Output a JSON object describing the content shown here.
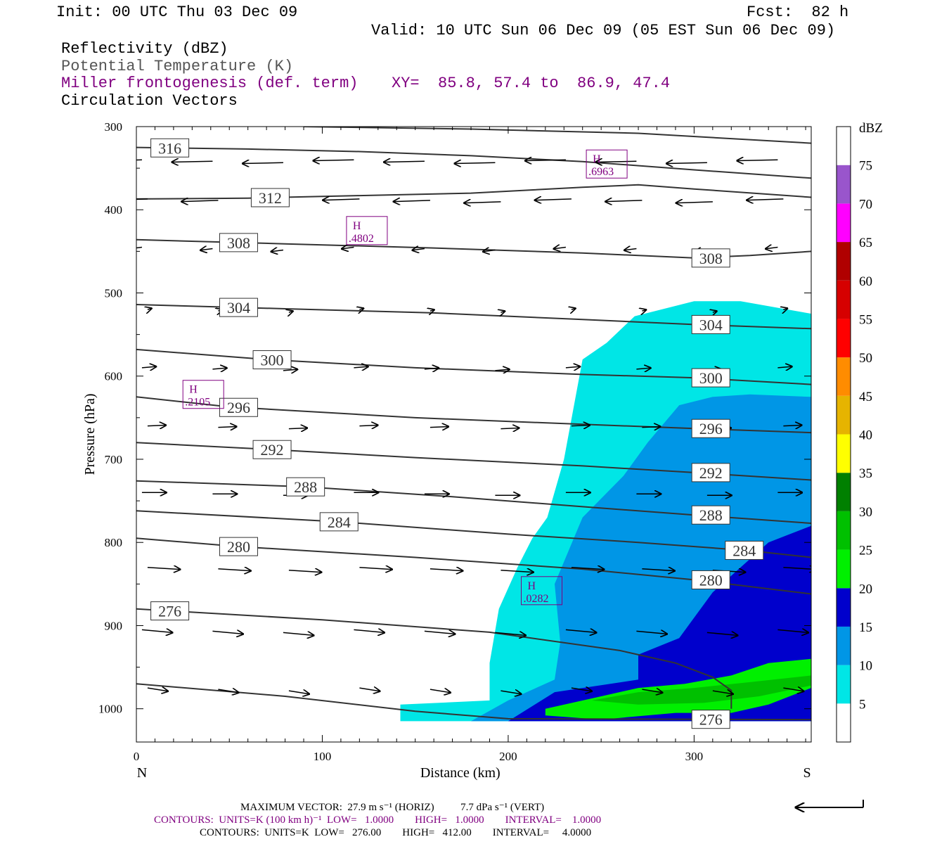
{
  "header": {
    "init": "Init: 00 UTC Thu 03 Dec 09",
    "fcst": "Fcst:  82 h",
    "valid": "Valid: 10 UTC Sun 06 Dec 09 (05 EST Sun 06 Dec 09)",
    "fields": [
      "Reflectivity (dBZ)",
      "Potential Temperature (K)",
      "Miller frontogenesis (def. term)",
      "Circulation Vectors"
    ],
    "xy": "XY=  85.8, 57.4 to  86.9, 47.4"
  },
  "footer": {
    "line1": "MAXIMUM VECTOR:  27.9 m s⁻¹ (HORIZ)          7.7 dPa s⁻¹ (VERT)",
    "line2": "CONTOURS:  UNITS=K (100 km h)⁻¹  LOW=   1.0000        HIGH=   1.0000        INTERVAL=    1.0000",
    "line3": "CONTOURS:  UNITS=K  LOW=   276.00        HIGH=   412.00        INTERVAL=     4.0000"
  },
  "chart_data": {
    "type": "cross-section",
    "xlabel": "Distance (km)",
    "ylabel": "Pressure (hPa)",
    "xlim": [
      0,
      363
    ],
    "ylim": [
      300,
      1040
    ],
    "x_ticks": [
      0,
      100,
      200,
      300
    ],
    "y_ticks": [
      300,
      400,
      500,
      600,
      700,
      800,
      900,
      1000
    ],
    "x_end_labels": {
      "left": "N",
      "right": "S"
    },
    "colorbar": {
      "title": "dBZ",
      "levels": [
        5,
        10,
        15,
        20,
        25,
        30,
        35,
        40,
        45,
        50,
        55,
        60,
        65,
        70,
        75
      ],
      "colors": [
        "#ffffff",
        "#00e6e6",
        "#0096e6",
        "#0000cc",
        "#00f000",
        "#00c000",
        "#008000",
        "#ffff00",
        "#e6b400",
        "#ff8c00",
        "#ff0000",
        "#d60000",
        "#b00000",
        "#ff00ff",
        "#9955cc",
        "#ffffff"
      ]
    },
    "reflectivity_regions": [
      {
        "dbz": 5,
        "polygon": [
          [
            142,
            995
          ],
          [
            190,
            990
          ],
          [
            190,
            945
          ],
          [
            195,
            880
          ],
          [
            205,
            830
          ],
          [
            213,
            795
          ],
          [
            221,
            770
          ],
          [
            230,
            700
          ],
          [
            235,
            640
          ],
          [
            240,
            580
          ],
          [
            253,
            560
          ],
          [
            268,
            528
          ],
          [
            300,
            510
          ],
          [
            325,
            510
          ],
          [
            363,
            525
          ],
          [
            363,
            1015
          ],
          [
            142,
            1015
          ]
        ]
      },
      {
        "dbz": 10,
        "polygon": [
          [
            180,
            1015
          ],
          [
            200,
            990
          ],
          [
            225,
            965
          ],
          [
            228,
            920
          ],
          [
            225,
            850
          ],
          [
            240,
            770
          ],
          [
            262,
            720
          ],
          [
            275,
            680
          ],
          [
            292,
            635
          ],
          [
            310,
            625
          ],
          [
            330,
            622
          ],
          [
            363,
            625
          ],
          [
            363,
            1015
          ]
        ]
      },
      {
        "dbz": 15,
        "polygon": [
          [
            200,
            1015
          ],
          [
            225,
            980
          ],
          [
            270,
            965
          ],
          [
            270,
            935
          ],
          [
            292,
            915
          ],
          [
            310,
            860
          ],
          [
            340,
            800
          ],
          [
            363,
            780
          ],
          [
            363,
            1015
          ]
        ]
      },
      {
        "dbz": 20,
        "polygon": [
          [
            220,
            1000
          ],
          [
            250,
            985
          ],
          [
            270,
            975
          ],
          [
            295,
            970
          ],
          [
            320,
            960
          ],
          [
            340,
            945
          ],
          [
            363,
            940
          ],
          [
            363,
            975
          ],
          [
            340,
            995
          ],
          [
            320,
            1005
          ],
          [
            290,
            1005
          ],
          [
            250,
            1013
          ],
          [
            220,
            1008
          ]
        ]
      },
      {
        "dbz": 25,
        "polygon": [
          [
            245,
            990
          ],
          [
            270,
            980
          ],
          [
            300,
            975
          ],
          [
            330,
            968
          ],
          [
            363,
            960
          ],
          [
            363,
            972
          ],
          [
            335,
            985
          ],
          [
            305,
            993
          ],
          [
            270,
            995
          ]
        ]
      }
    ],
    "theta_contours": [
      {
        "value": 316,
        "points": [
          [
            0,
            325
          ],
          [
            60,
            327
          ],
          [
            120,
            330
          ],
          [
            180,
            335
          ],
          [
            240,
            342
          ],
          [
            300,
            352
          ],
          [
            363,
            362
          ]
        ],
        "label_x": 18
      },
      {
        "value": 316,
        "points": [
          [
            90,
            300
          ],
          [
            180,
            303
          ],
          [
            270,
            308
          ],
          [
            363,
            320
          ]
        ],
        "label_x": null
      },
      {
        "value": 312,
        "points": [
          [
            0,
            387
          ],
          [
            60,
            386
          ],
          [
            120,
            383
          ],
          [
            180,
            380
          ],
          [
            240,
            373
          ],
          [
            270,
            370
          ],
          [
            300,
            375
          ],
          [
            363,
            385
          ]
        ],
        "label_x": 72
      },
      {
        "value": 308,
        "points": [
          [
            0,
            436
          ],
          [
            80,
            441
          ],
          [
            160,
            446
          ],
          [
            240,
            452
          ],
          [
            300,
            458
          ],
          [
            330,
            455
          ],
          [
            363,
            450
          ]
        ],
        "label_x": 55
      },
      {
        "value": 308,
        "points": [
          [
            240,
            452
          ],
          [
            300,
            458
          ]
        ],
        "label_x": 309
      },
      {
        "value": 304,
        "points": [
          [
            0,
            514
          ],
          [
            80,
            519
          ],
          [
            160,
            524
          ],
          [
            240,
            532
          ],
          [
            300,
            538
          ],
          [
            363,
            543
          ]
        ],
        "label_x": 55
      },
      {
        "value": 304,
        "points": [
          [
            240,
            532
          ],
          [
            300,
            538
          ]
        ],
        "label_x": 309
      },
      {
        "value": 300,
        "points": [
          [
            0,
            568
          ],
          [
            70,
            580
          ],
          [
            150,
            590
          ],
          [
            240,
            598
          ],
          [
            300,
            602
          ],
          [
            363,
            610
          ]
        ],
        "label_x": 73
      },
      {
        "value": 300,
        "points": [
          [
            240,
            598
          ],
          [
            300,
            602
          ]
        ],
        "label_x": 309
      },
      {
        "value": 296,
        "points": [
          [
            0,
            625
          ],
          [
            50,
            637
          ],
          [
            150,
            650
          ],
          [
            240,
            658
          ],
          [
            300,
            663
          ],
          [
            363,
            668
          ]
        ],
        "label_x": 55
      },
      {
        "value": 296,
        "points": [
          [
            240,
            658
          ],
          [
            300,
            663
          ]
        ],
        "label_x": 309
      },
      {
        "value": 292,
        "points": [
          [
            0,
            680
          ],
          [
            70,
            688
          ],
          [
            150,
            698
          ],
          [
            240,
            708
          ],
          [
            300,
            716
          ],
          [
            363,
            725
          ]
        ],
        "label_x": 73
      },
      {
        "value": 292,
        "points": [
          [
            240,
            708
          ],
          [
            300,
            716
          ]
        ],
        "label_x": 309
      },
      {
        "value": 288,
        "points": [
          [
            0,
            726
          ],
          [
            90,
            733
          ],
          [
            170,
            745
          ],
          [
            240,
            757
          ],
          [
            300,
            767
          ],
          [
            363,
            777
          ]
        ],
        "label_x": 91
      },
      {
        "value": 288,
        "points": [
          [
            240,
            757
          ],
          [
            300,
            767
          ]
        ],
        "label_x": 309
      },
      {
        "value": 284,
        "points": [
          [
            0,
            762
          ],
          [
            108,
            775
          ],
          [
            200,
            790
          ],
          [
            270,
            800
          ],
          [
            330,
            810
          ],
          [
            363,
            818
          ]
        ],
        "label_x": 109
      },
      {
        "value": 284,
        "points": [
          [
            270,
            800
          ],
          [
            330,
            810
          ]
        ],
        "label_x": 327
      },
      {
        "value": 280,
        "points": [
          [
            0,
            795
          ],
          [
            55,
            805
          ],
          [
            150,
            818
          ],
          [
            240,
            832
          ],
          [
            300,
            845
          ],
          [
            363,
            862
          ]
        ],
        "label_x": 55
      },
      {
        "value": 280,
        "points": [
          [
            240,
            832
          ],
          [
            300,
            845
          ]
        ],
        "label_x": 309
      },
      {
        "value": 276,
        "points": [
          [
            0,
            880
          ],
          [
            100,
            893
          ],
          [
            190,
            908
          ],
          [
            260,
            930
          ],
          [
            290,
            945
          ],
          [
            310,
            962
          ],
          [
            320,
            978
          ],
          [
            320,
            1000
          ]
        ],
        "label_x": 18
      },
      {
        "value": 276,
        "points": [
          [
            0,
            970
          ],
          [
            80,
            985
          ],
          [
            150,
            1003
          ],
          [
            200,
            1012
          ],
          [
            363,
            1013
          ]
        ],
        "label_x": 309
      }
    ],
    "frontogenesis_maxima": [
      {
        "label": "H",
        "value": ".6963",
        "x": 253,
        "p": 345
      },
      {
        "label": "H",
        "value": ".4802",
        "x": 124,
        "p": 425
      },
      {
        "label": "H",
        "value": ".2105",
        "x": 36,
        "p": 622
      },
      {
        "label": "H",
        "value": ".0282",
        "x": 218,
        "p": 858
      }
    ],
    "vector_rows": [
      {
        "p": 340,
        "u": -1.0,
        "w": -0.02
      },
      {
        "p": 387,
        "u": -0.9,
        "w": -0.03
      },
      {
        "p": 445,
        "u": -0.3,
        "w": -0.04
      },
      {
        "p": 520,
        "u": 0.1,
        "w": 0.03
      },
      {
        "p": 590,
        "u": 0.35,
        "w": 0.03
      },
      {
        "p": 660,
        "u": 0.45,
        "w": 0.02
      },
      {
        "p": 740,
        "u": 0.6,
        "w": 0.0
      },
      {
        "p": 830,
        "u": 0.8,
        "w": -0.05
      },
      {
        "p": 905,
        "u": 0.75,
        "w": -0.07
      },
      {
        "p": 975,
        "u": 0.5,
        "w": -0.08
      }
    ],
    "reference_vector_label": "27.9 m s-1 / 7.7 dPa s-1"
  }
}
